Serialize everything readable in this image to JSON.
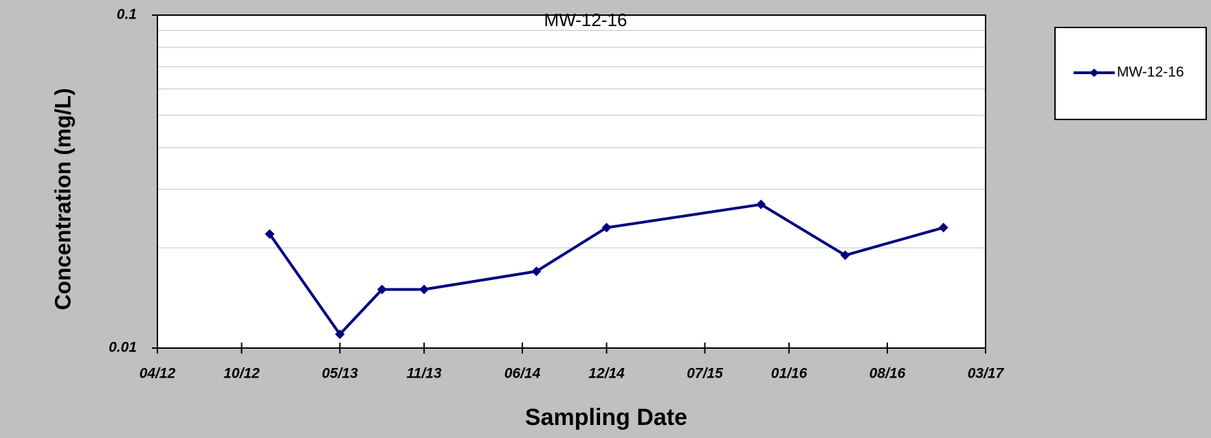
{
  "chart_data": {
    "type": "line",
    "title": "MW-12-16",
    "x_label": "Sampling Date",
    "y_label": "Concentration (mg/L)",
    "x": [
      "2012-12",
      "2013-05",
      "2013-08",
      "2013-11",
      "2014-07",
      "2014-12",
      "2015-11",
      "2016-05",
      "2016-12"
    ],
    "series": [
      {
        "name": "MW-12-16",
        "color": "#000080",
        "values": [
          0.022,
          0.011,
          0.015,
          0.015,
          0.017,
          0.023,
          0.027,
          0.019,
          0.023
        ]
      }
    ],
    "ylim": [
      0.01,
      0.1
    ],
    "yticks": [
      0.01,
      0.1
    ],
    "log_y": true,
    "grid": true,
    "minor_grid": [
      0.02,
      0.03,
      0.04,
      0.05,
      0.06,
      0.07,
      0.08,
      0.09
    ],
    "xlim": [
      "2012-04",
      "2017-03"
    ],
    "xticks": [
      {
        "value": "2012-04",
        "label": "04/12"
      },
      {
        "value": "2012-10",
        "label": "10/12"
      },
      {
        "value": "2013-05",
        "label": "05/13"
      },
      {
        "value": "2013-11",
        "label": "11/13"
      },
      {
        "value": "2014-06",
        "label": "06/14"
      },
      {
        "value": "2014-12",
        "label": "12/14"
      },
      {
        "value": "2015-07",
        "label": "07/15"
      },
      {
        "value": "2016-01",
        "label": "01/16"
      },
      {
        "value": "2016-08",
        "label": "08/16"
      },
      {
        "value": "2017-03",
        "label": "03/17"
      }
    ],
    "legend": "right"
  }
}
